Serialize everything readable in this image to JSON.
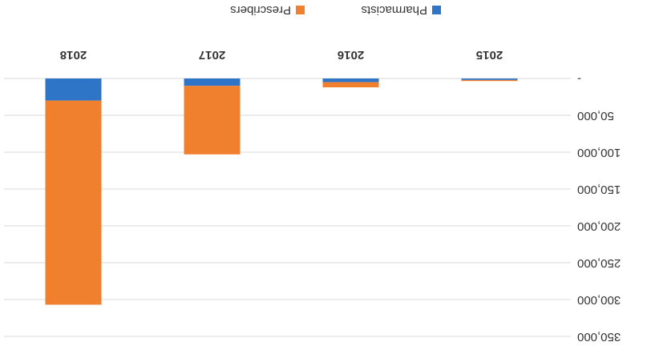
{
  "chart_data": {
    "type": "stacked_bar",
    "categories": [
      "2015",
      "2016",
      "2017",
      "2018"
    ],
    "series": [
      {
        "name": "Pharmacists",
        "color": "#2e75c8",
        "values": [
          2000,
          5000,
          10000,
          30000
        ]
      },
      {
        "name": "Prescribers",
        "color": "#f07f2e",
        "values": [
          1500,
          7000,
          93000,
          277000
        ]
      }
    ],
    "ylim": [
      0,
      350000
    ],
    "yticks": [
      {
        "value": 0,
        "label": "-"
      },
      {
        "value": 50000,
        "label": "50,000"
      },
      {
        "value": 100000,
        "label": "100,000"
      },
      {
        "value": 150000,
        "label": "150,000"
      },
      {
        "value": 200000,
        "label": "200,000"
      },
      {
        "value": 250000,
        "label": "250,000"
      },
      {
        "value": 300000,
        "label": "300,000"
      },
      {
        "value": 350000,
        "label": "350,000"
      }
    ],
    "grid": true,
    "legend": "bottom"
  }
}
